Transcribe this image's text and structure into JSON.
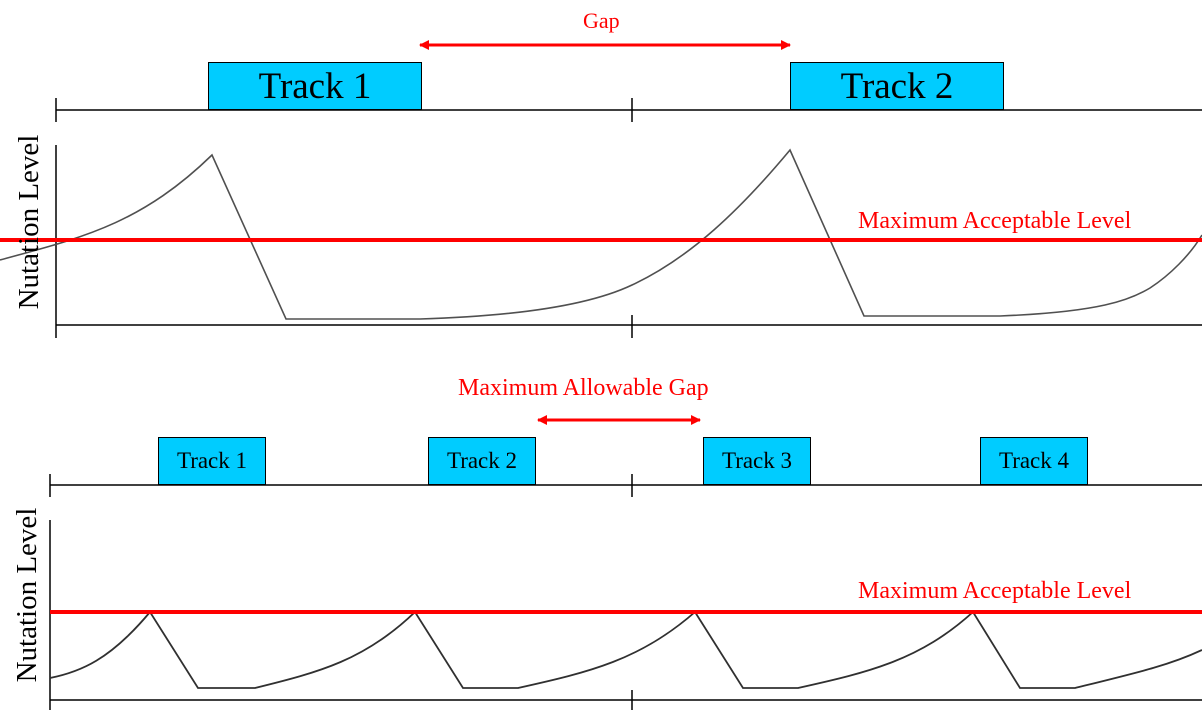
{
  "colors": {
    "track_fill": "#00ccff",
    "threshold": "#ff0000",
    "curve": "#000000",
    "axis": "#000000"
  },
  "top_panel": {
    "gap_label": "Gap",
    "ylabel": "Nutation Level",
    "threshold_label": "Maximum Acceptable Level",
    "tracks": [
      "Track 1",
      "Track 2"
    ]
  },
  "bottom_panel": {
    "gap_label": "Maximum Allowable Gap",
    "ylabel": "Nutation Level",
    "threshold_label": "Maximum Acceptable Level",
    "tracks": [
      "Track 1",
      "Track 2",
      "Track 3",
      "Track 4"
    ]
  }
}
